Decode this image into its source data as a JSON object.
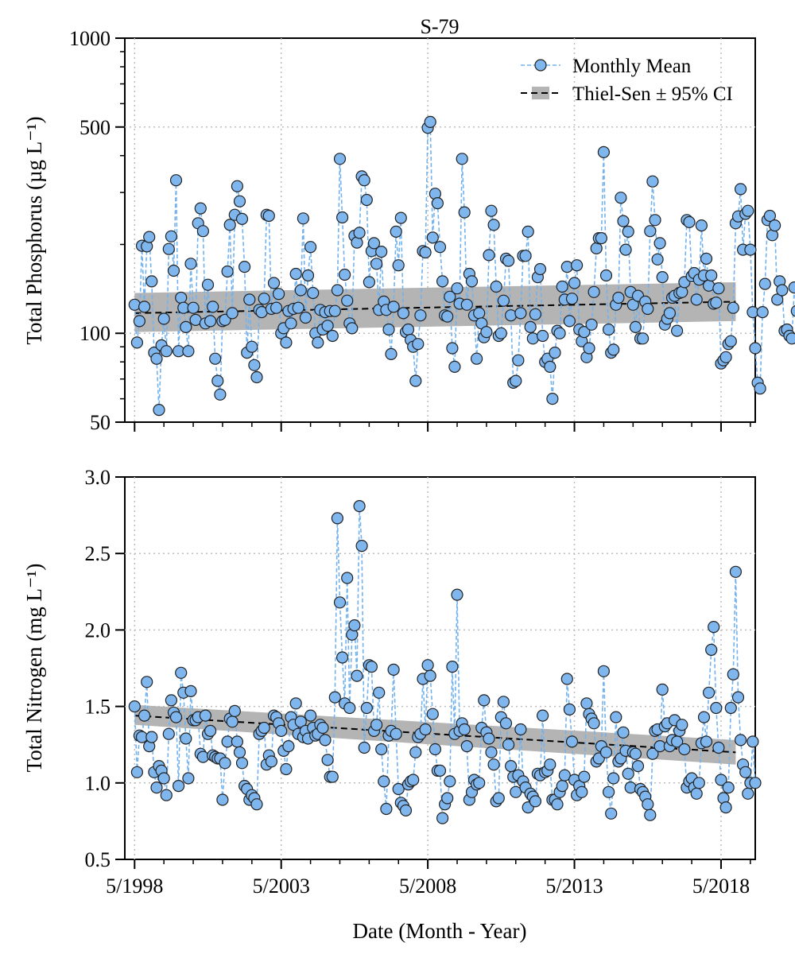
{
  "colors": {
    "point_fill": "#7fb6ee",
    "point_stroke": "#222222",
    "series_line": "#72b2ee",
    "ci_band": "#b4b4b4",
    "trend_line": "#000000",
    "grid": "#bdbdbd"
  },
  "chart_data": [
    {
      "type": "scatter",
      "title": "S-79",
      "ylabel": "Total Phosphorus (µg L⁻¹)",
      "yscale": "log",
      "ylim": [
        50,
        1000
      ],
      "yticks": [
        50,
        100,
        500,
        1000
      ],
      "ytick_labels": [
        "50",
        "100",
        "500",
        "1000"
      ],
      "xlim": [
        "1998-01",
        "2019-07"
      ],
      "xticks": [
        "1998-05",
        "2003-05",
        "2008-05",
        "2013-05",
        "2018-05"
      ],
      "grid": true,
      "legend_position": "top-right",
      "legend": [
        "Monthly Mean",
        "Thiel-Sen ± 95% CI"
      ],
      "series": [
        {
          "name": "Monthly Mean",
          "start": "1998-05",
          "interval": "month",
          "values": [
            125,
            93,
            110,
            198,
            123,
            197,
            212,
            150,
            86,
            82,
            55,
            91,
            112,
            87,
            193,
            213,
            163,
            330,
            87,
            132,
            122,
            105,
            87,
            172,
            122,
            111,
            236,
            265,
            222,
            108,
            146,
            110,
            123,
            82,
            69,
            62,
            110,
            111,
            162,
            233,
            117,
            252,
            315,
            280,
            244,
            168,
            86,
            130,
            90,
            78,
            71,
            120,
            118,
            131,
            252,
            250,
            121,
            148,
            122,
            136,
            100,
            104,
            93,
            119,
            108,
            121,
            159,
            122,
            140,
            245,
            113,
            157,
            196,
            137,
            100,
            93,
            120,
            103,
            118,
            106,
            119,
            98,
            119,
            140,
            390,
            247,
            158,
            129,
            108,
            104,
            214,
            203,
            219,
            340,
            330,
            283,
            149,
            190,
            202,
            172,
            120,
            189,
            128,
            120,
            103,
            85,
            123,
            221,
            170,
            246,
            117,
            101,
            103,
            95,
            90,
            69,
            92,
            115,
            190,
            188,
            497,
            520,
            211,
            297,
            276,
            196,
            150,
            115,
            114,
            133,
            89,
            77,
            142,
            126,
            390,
            257,
            125,
            159,
            150,
            115,
            82,
            117,
            108,
            97,
            101,
            184,
            260,
            233,
            144,
            98,
            100,
            129,
            179,
            176,
            115,
            68,
            69,
            81,
            117,
            183,
            183,
            221,
            105,
            96,
            116,
            155,
            165,
            98,
            80,
            82,
            77,
            60,
            86,
            102,
            100,
            144,
            130,
            168,
            110,
            131,
            148,
            170,
            103,
            94,
            101,
            83,
            89,
            107,
            138,
            194,
            210,
            210,
            411,
            157,
            103,
            86,
            88,
            125,
            132,
            288,
            240,
            192,
            221,
            138,
            125,
            105,
            134,
            96,
            96,
            128,
            121,
            222,
            327,
            242,
            178,
            202,
            155,
            107,
            112,
            117,
            132,
            134,
            102,
            137,
            138,
            149,
            242,
            238,
            156,
            160,
            130,
            152,
            232,
            157,
            179,
            145,
            157,
            126,
            127,
            142,
            79,
            81,
            83,
            92,
            94,
            122,
            236,
            249,
            308,
            192,
            254,
            260,
            192,
            118,
            89,
            68,
            65,
            118,
            147,
            242,
            250,
            215,
            232,
            130,
            150,
            140,
            102,
            103,
            98,
            96,
            143,
            119
          ]
        },
        {
          "name": "Thiel-Sen ± 95% CI",
          "x": [
            "1998-05",
            "2018-11"
          ],
          "trend": [
            117,
            128
          ],
          "ci_lower": [
            101,
            110
          ],
          "ci_upper": [
            137,
            149
          ]
        }
      ]
    },
    {
      "type": "scatter",
      "title": "",
      "ylabel": "Total Nitrogen (mg L⁻¹)",
      "yscale": "linear",
      "ylim": [
        0.5,
        3.0
      ],
      "yticks": [
        0.5,
        1.0,
        1.5,
        2.0,
        2.5,
        3.0
      ],
      "ytick_labels": [
        "0.5",
        "1.0",
        "1.5",
        "2.0",
        "2.5",
        "3.0"
      ],
      "xlabel": "Date (Month - Year)",
      "xlim": [
        "1998-01",
        "2019-07"
      ],
      "xticks": [
        "1998-05",
        "2003-05",
        "2008-05",
        "2013-05",
        "2018-05"
      ],
      "xtick_labels": [
        "5/1998",
        "5/2003",
        "5/2008",
        "5/2013",
        "5/2018"
      ],
      "grid": true,
      "series": [
        {
          "name": "Monthly Mean",
          "start": "1998-05",
          "interval": "month",
          "values": [
            1.5,
            1.07,
            1.31,
            1.3,
            1.44,
            1.66,
            1.24,
            1.3,
            1.07,
            0.97,
            1.11,
            1.08,
            1.03,
            0.92,
            1.32,
            1.54,
            1.46,
            1.43,
            0.98,
            1.72,
            1.59,
            1.29,
            1.03,
            1.6,
            1.41,
            1.41,
            1.43,
            1.19,
            1.17,
            1.44,
            1.32,
            1.34,
            1.18,
            1.17,
            1.16,
            1.16,
            0.89,
            1.13,
            1.27,
            1.42,
            1.4,
            1.47,
            1.27,
            1.2,
            1.13,
            0.98,
            0.96,
            0.89,
            0.92,
            0.9,
            0.86,
            1.32,
            1.34,
            1.36,
            1.12,
            1.18,
            1.14,
            1.44,
            1.43,
            1.39,
            1.34,
            1.21,
            1.09,
            1.24,
            1.43,
            1.38,
            1.52,
            1.32,
            1.4,
            1.3,
            1.34,
            1.29,
            1.44,
            1.36,
            1.31,
            1.32,
            1.38,
            1.36,
            1.28,
            1.15,
            1.04,
            1.04,
            1.56,
            2.73,
            2.18,
            1.82,
            1.52,
            2.34,
            1.49,
            1.97,
            2.03,
            1.7,
            2.81,
            2.55,
            1.23,
            1.49,
            1.77,
            1.76,
            1.34,
            1.38,
            1.59,
            1.22,
            1.01,
            0.83,
            1.31,
            1.34,
            1.74,
            1.32,
            0.96,
            0.87,
            0.85,
            0.82,
            0.99,
            1.01,
            1.02,
            1.2,
            1.3,
            1.32,
            1.68,
            1.35,
            1.77,
            1.7,
            1.45,
            1.22,
            1.08,
            1.08,
            0.77,
            0.86,
            0.9,
            1.01,
            1.76,
            1.32,
            2.23,
            1.34,
            1.39,
            1.35,
            1.24,
            0.89,
            0.94,
            1.02,
            0.99,
            1.0,
            1.36,
            1.54,
            1.33,
            1.29,
            1.2,
            1.12,
            0.88,
            0.9,
            1.43,
            1.53,
            1.39,
            1.25,
            1.11,
            1.04,
            0.94,
            1.05,
            1.35,
            1.01,
            0.97,
            0.84,
            0.93,
            0.91,
            0.88,
            1.06,
            1.05,
            1.44,
            1.07,
            1.08,
            1.12,
            0.89,
            0.89,
            0.86,
            0.94,
            0.98,
            1.05,
            1.68,
            1.48,
            1.27,
            1.02,
            0.92,
            0.98,
            0.94,
            1.04,
            1.52,
            1.45,
            1.42,
            1.39,
            1.14,
            1.16,
            1.24,
            1.73,
            1.2,
            0.94,
            0.8,
            1.03,
            1.43,
            1.14,
            1.16,
            1.33,
            1.21,
            1.06,
            0.97,
            1.2,
            1.19,
            1.11,
            0.96,
            0.94,
            0.91,
            0.86,
            0.79,
            1.19,
            1.34,
            1.35,
            1.24,
            1.61,
            1.37,
            1.39,
            1.24,
            1.28,
            1.41,
            1.27,
            1.34,
            1.38,
            1.22,
            0.97,
            1.01,
            1.03,
            0.97,
            0.93,
            1.0,
            1.26,
            1.43,
            1.27,
            1.59,
            1.87,
            2.02,
            1.49,
            1.23,
            1.02,
            0.9,
            0.84,
            0.97,
            1.49,
            1.71,
            2.38,
            1.56,
            1.28,
            1.12,
            1.07,
            0.93,
            1.0,
            1.27,
            1.0
          ]
        },
        {
          "name": "Thiel-Sen ± 95% CI",
          "x": [
            "1998-05",
            "2018-11"
          ],
          "trend": [
            1.44,
            1.2
          ],
          "ci_lower": [
            1.38,
            1.12
          ],
          "ci_upper": [
            1.51,
            1.28
          ]
        }
      ]
    }
  ]
}
